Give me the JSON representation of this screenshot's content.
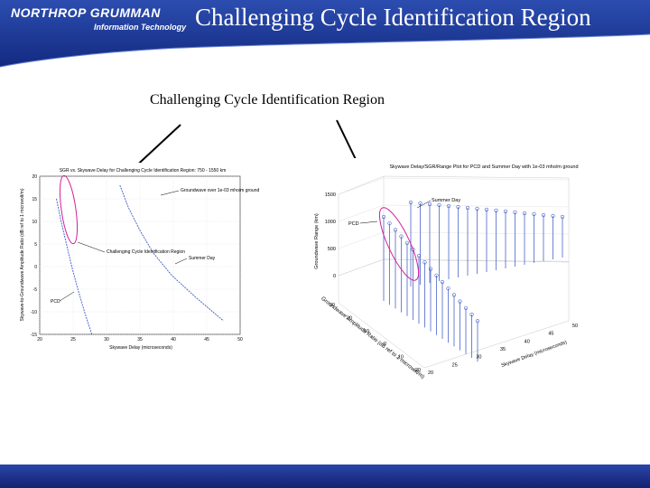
{
  "header": {
    "logo_line1": "NORTHROP GRUMMAN",
    "logo_line2": "Information Technology",
    "title": "Challenging Cycle Identification Region"
  },
  "slide": {
    "subtitle": "Challenging Cycle Identification Region"
  },
  "left_chart": {
    "title": "SGR vs. Skywave Delay for Challenging Cycle Identification Region: 750 - 1550 km",
    "x_label": "Skywave Delay (microseconds)",
    "y_label": "Skywave-to-Groundwave Amplitude Ratio (dB ref to 1 microvolt/m)",
    "x_ticks": [
      "20",
      "25",
      "30",
      "35",
      "40",
      "45",
      "50"
    ],
    "y_ticks": [
      "20",
      "15",
      "10",
      "5",
      "0",
      "-5",
      "-10",
      "-15"
    ],
    "labels": {
      "groundwave": "Groundwave over 1e-03 mho/m ground",
      "challenging": "Challenging Cycle Identification Region",
      "summer": "Summer Day",
      "pcd": "PCD"
    }
  },
  "right_chart": {
    "title": "Skywave Delay/SGR/Range Plot for PCD and Summer Day with 1e-03 mho/m ground",
    "z_label": "Groundwave Range (km)",
    "x_label": "Skywave Delay (microseconds)",
    "y_label": "Groundwave Amplitude Ratio (dB ref to 1 microvolt/m)",
    "z_ticks": [
      "1500",
      "1000",
      "500",
      "0"
    ],
    "x_ticks": [
      "50",
      "45",
      "40",
      "35",
      "30",
      "25",
      "20"
    ],
    "y_ticks": [
      "30",
      "20",
      "10",
      "0",
      "-10",
      "-20"
    ],
    "labels": {
      "summer": "Summer Day",
      "pcd": "PCD"
    }
  },
  "chart_data": [
    {
      "type": "line",
      "title": "SGR vs. Skywave Delay for Challenging Cycle Identification Region: 750 - 1550 km",
      "xlabel": "Skywave Delay (microseconds)",
      "ylabel": "Skywave-to-Groundwave Amplitude Ratio (dB ref to 1 microvolt/m)",
      "xlim": [
        20,
        50
      ],
      "ylim": [
        -15,
        20
      ],
      "series": [
        {
          "name": "PCD",
          "x": [
            22.5,
            23.2,
            24.0,
            24.8,
            25.7,
            26.7,
            27.8
          ],
          "y": [
            15,
            10,
            5,
            0,
            -5,
            -10,
            -15
          ]
        },
        {
          "name": "Summer Day",
          "x": [
            32,
            33.3,
            35.0,
            37.0,
            39.8,
            43.5,
            47.5
          ],
          "y": [
            18,
            13,
            8,
            3,
            -2,
            -7,
            -12
          ]
        }
      ]
    },
    {
      "type": "scatter",
      "title": "Skywave Delay/SGR/Range Plot for PCD and Summer Day with 1e-03 mho/m ground",
      "zlabel": "Groundwave Range (km)",
      "zlim": [
        0,
        1500
      ],
      "series": [
        {
          "name": "PCD",
          "range_km": [
            1550,
            1500,
            1450,
            1400,
            1350,
            1300,
            1250,
            1200,
            1150,
            1100,
            1050,
            1000,
            950,
            900,
            850,
            800,
            750
          ]
        },
        {
          "name": "Summer Day",
          "range_km": [
            1550,
            1500,
            1450,
            1400,
            1350,
            1300,
            1250,
            1200,
            1150,
            1100,
            1050,
            1000,
            950,
            900,
            850,
            800,
            750
          ]
        }
      ]
    }
  ]
}
